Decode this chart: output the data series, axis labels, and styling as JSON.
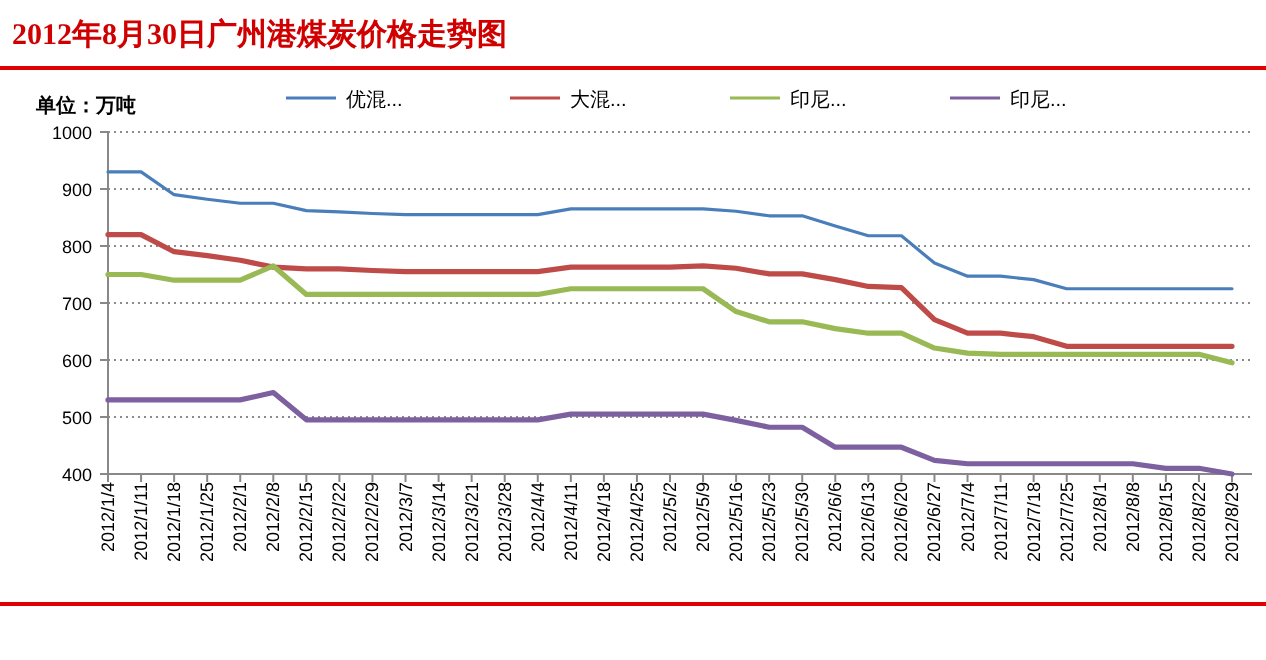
{
  "chart_data": {
    "type": "line",
    "title": "2012年8月30日广州港煤炭价格走势图",
    "ylabel": "单位：万吨",
    "categories": [
      "2012/1/4",
      "2012/1/11",
      "2012/1/18",
      "2012/1/25",
      "2012/2/1",
      "2012/2/8",
      "2012/2/15",
      "2012/2/22",
      "2012/2/29",
      "2012/3/7",
      "2012/3/14",
      "2012/3/21",
      "2012/3/28",
      "2012/4/4",
      "2012/4/11",
      "2012/4/18",
      "2012/4/25",
      "2012/5/2",
      "2012/5/9",
      "2012/5/16",
      "2012/5/23",
      "2012/5/30",
      "2012/6/6",
      "2012/6/13",
      "2012/6/20",
      "2012/6/27",
      "2012/7/4",
      "2012/7/11",
      "2012/7/18",
      "2012/7/25",
      "2012/8/1",
      "2012/8/8",
      "2012/8/15",
      "2012/8/22",
      "2012/8/29"
    ],
    "series": [
      {
        "name": "优混...",
        "color": "#4a7ebb",
        "values": [
          930,
          930,
          890,
          882,
          875,
          875,
          862,
          860,
          857,
          855,
          855,
          855,
          855,
          855,
          865,
          865,
          865,
          865,
          865,
          861,
          853,
          853,
          835,
          818,
          818,
          770,
          747,
          747,
          741,
          725,
          725,
          725,
          725,
          725,
          725
        ]
      },
      {
        "name": "大混...",
        "color": "#be4b48",
        "values": [
          820,
          820,
          790,
          783,
          775,
          763,
          760,
          760,
          757,
          755,
          755,
          755,
          755,
          755,
          763,
          763,
          763,
          763,
          765,
          761,
          751,
          751,
          741,
          729,
          727,
          671,
          647,
          647,
          641,
          624,
          624,
          624,
          624,
          624,
          624
        ]
      },
      {
        "name": "印尼...",
        "color": "#98b954",
        "values": [
          750,
          750,
          740,
          740,
          740,
          765,
          715,
          715,
          715,
          715,
          715,
          715,
          715,
          715,
          725,
          725,
          725,
          725,
          725,
          685,
          667,
          667,
          655,
          647,
          647,
          621,
          612,
          610,
          610,
          610,
          610,
          610,
          610,
          610,
          595
        ]
      },
      {
        "name": "印尼...",
        "color": "#7d60a0",
        "values": [
          530,
          530,
          530,
          530,
          530,
          543,
          495,
          495,
          495,
          495,
          495,
          495,
          495,
          495,
          505,
          505,
          505,
          505,
          505,
          494,
          482,
          482,
          447,
          447,
          447,
          424,
          418,
          418,
          418,
          418,
          418,
          418,
          410,
          410,
          400
        ]
      }
    ],
    "ylim": [
      400,
      1000
    ],
    "yticks": [
      400,
      500,
      600,
      700,
      800,
      900,
      1000
    ],
    "grid": "y",
    "legend": "top",
    "marker": "none",
    "line_style": "solid"
  }
}
